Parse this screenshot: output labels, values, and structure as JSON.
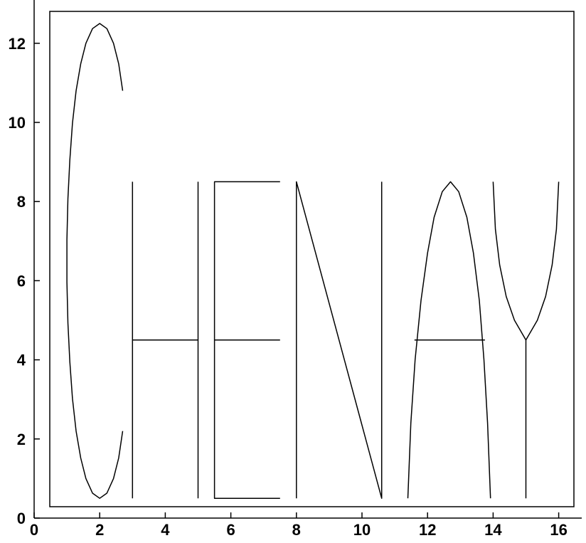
{
  "chart_data": {
    "type": "line",
    "title": "",
    "xlabel": "",
    "ylabel": "",
    "xlim": [
      0,
      17
    ],
    "ylim": [
      0,
      12.5
    ],
    "xticks": [
      0,
      2,
      4,
      6,
      8,
      10,
      12,
      14,
      16
    ],
    "yticks": [
      0,
      2,
      4,
      6,
      8,
      10,
      12
    ],
    "xtick_labels": [
      "0",
      "2",
      "4",
      "6",
      "8",
      "10",
      "12",
      "14",
      "16"
    ],
    "ytick_labels": [
      "0",
      "2",
      "4",
      "6",
      "8",
      "10",
      "12"
    ],
    "grid": false,
    "line_color": "#000000",
    "series": [
      {
        "points": [
          [
            2.7,
            10.8
          ],
          [
            2.58,
            11.48
          ],
          [
            2.42,
            12.0
          ],
          [
            2.22,
            12.37
          ],
          [
            2.0,
            12.5
          ],
          [
            1.78,
            12.37
          ],
          [
            1.58,
            12.0
          ],
          [
            1.42,
            11.48
          ],
          [
            1.28,
            10.8
          ],
          [
            1.17,
            9.98
          ],
          [
            1.09,
            9.05
          ],
          [
            1.03,
            8.07
          ],
          [
            1.0,
            7.04
          ],
          [
            1.0,
            5.96
          ],
          [
            1.03,
            4.93
          ],
          [
            1.09,
            3.95
          ],
          [
            1.17,
            3.02
          ],
          [
            1.28,
            2.2
          ],
          [
            1.42,
            1.52
          ],
          [
            1.58,
            1.0
          ],
          [
            1.78,
            0.63
          ],
          [
            2.0,
            0.5
          ],
          [
            2.22,
            0.63
          ],
          [
            2.42,
            1.0
          ],
          [
            2.58,
            1.52
          ],
          [
            2.7,
            2.2
          ]
        ]
      },
      {
        "points": [
          [
            3.0,
            0.5
          ],
          [
            3.0,
            8.5
          ]
        ]
      },
      {
        "points": [
          [
            3.0,
            4.5
          ],
          [
            5.0,
            4.5
          ]
        ]
      },
      {
        "points": [
          [
            5.0,
            0.5
          ],
          [
            5.0,
            8.5
          ]
        ]
      },
      {
        "points": [
          [
            7.5,
            8.5
          ],
          [
            5.5,
            8.5
          ],
          [
            5.5,
            0.5
          ],
          [
            7.5,
            0.5
          ]
        ]
      },
      {
        "points": [
          [
            5.5,
            4.5
          ],
          [
            7.5,
            4.5
          ]
        ]
      },
      {
        "points": [
          [
            8.0,
            0.5
          ],
          [
            8.0,
            8.5
          ],
          [
            10.6,
            0.5
          ],
          [
            10.6,
            8.5
          ]
        ]
      },
      {
        "points": [
          [
            11.4,
            0.5
          ],
          [
            11.49,
            2.4
          ],
          [
            11.62,
            4.0
          ],
          [
            11.8,
            5.5
          ],
          [
            12.0,
            6.7
          ],
          [
            12.2,
            7.6
          ],
          [
            12.45,
            8.25
          ],
          [
            12.7,
            8.5
          ],
          [
            12.95,
            8.25
          ],
          [
            13.2,
            7.6
          ],
          [
            13.4,
            6.7
          ],
          [
            13.58,
            5.5
          ],
          [
            13.72,
            4.0
          ],
          [
            13.83,
            2.4
          ],
          [
            13.92,
            0.5
          ]
        ]
      },
      {
        "points": [
          [
            11.6,
            4.5
          ],
          [
            13.75,
            4.5
          ]
        ]
      },
      {
        "points": [
          [
            14.0,
            8.5
          ],
          [
            14.07,
            7.3
          ],
          [
            14.2,
            6.4
          ],
          [
            14.4,
            5.6
          ],
          [
            14.65,
            5.0
          ],
          [
            15.0,
            4.5
          ],
          [
            15.35,
            5.0
          ],
          [
            15.6,
            5.6
          ],
          [
            15.8,
            6.4
          ],
          [
            15.93,
            7.3
          ],
          [
            16.0,
            8.5
          ]
        ]
      },
      {
        "points": [
          [
            15.0,
            4.5
          ],
          [
            15.0,
            0.5
          ]
        ]
      }
    ]
  }
}
